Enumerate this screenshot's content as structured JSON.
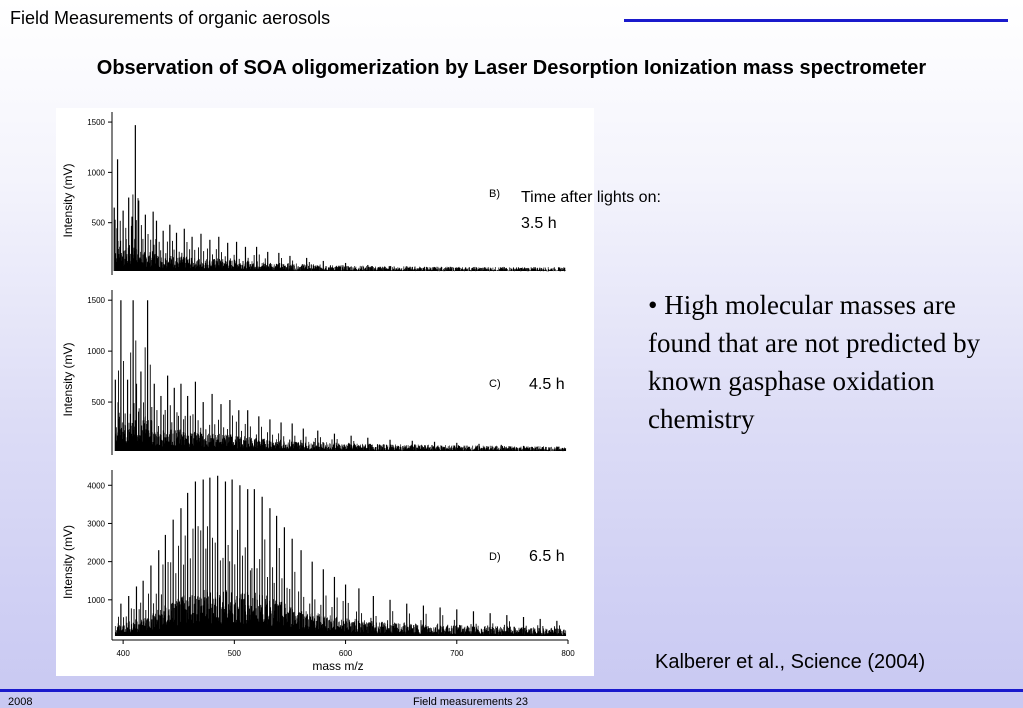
{
  "header": {
    "title": "Field Measurements of organic aerosols",
    "rule_color": "#1a1acc"
  },
  "slide_title": "Observation of SOA oligomerization by Laser Desorption Ionization mass spectrometer",
  "annotations": {
    "time_label": "Time  after lights on:",
    "panel_b_label": "B)",
    "panel_b_time": "3.5 h",
    "panel_c_label": "C)",
    "panel_c_time": "4.5 h",
    "panel_d_label": "D)",
    "panel_d_time": "6.5 h"
  },
  "bullet": "• High molecular masses are found that are not predicted by known gasphase oxidation chemistry",
  "citation": "Kalberer et al., Science (2004)",
  "footer": {
    "left": "2008",
    "center": "Field measurements 23",
    "rule_color": "#1a1acc"
  },
  "chart_data": [
    {
      "type": "line",
      "panel": "B)",
      "xlabel": "",
      "ylabel": "Intensity (mV)",
      "xlim": [
        390,
        800
      ],
      "ylim": [
        0,
        1600
      ],
      "yticks": [
        500,
        1000,
        1500
      ],
      "peaks": {
        "x": [
          392,
          395,
          400,
          405,
          408,
          411,
          414,
          420,
          427,
          430,
          436,
          442,
          448,
          455,
          462,
          470,
          478,
          486,
          494,
          502,
          510,
          520,
          530,
          540,
          550,
          565,
          580,
          600,
          620,
          640,
          660,
          680,
          700,
          720,
          740,
          760,
          780,
          795
        ],
        "y": [
          650,
          1130,
          620,
          750,
          560,
          1470,
          720,
          580,
          610,
          520,
          420,
          480,
          400,
          440,
          360,
          390,
          330,
          360,
          300,
          310,
          260,
          260,
          210,
          200,
          170,
          150,
          120,
          100,
          80,
          70,
          60,
          50,
          45,
          40,
          40,
          35,
          35,
          30
        ]
      }
    },
    {
      "type": "line",
      "panel": "C)",
      "xlabel": "",
      "ylabel": "Intensity (mV)",
      "xlim": [
        390,
        800
      ],
      "ylim": [
        0,
        1600
      ],
      "yticks": [
        500,
        1000,
        1500
      ],
      "peaks": {
        "x": [
          393,
          398,
          404,
          409,
          412,
          416,
          422,
          428,
          434,
          440,
          446,
          452,
          458,
          465,
          472,
          480,
          488,
          496,
          504,
          512,
          522,
          532,
          542,
          552,
          562,
          575,
          590,
          605,
          620,
          640,
          660,
          680,
          700,
          720,
          740,
          760,
          780,
          795
        ],
        "y": [
          720,
          1500,
          720,
          1500,
          680,
          800,
          1500,
          680,
          560,
          760,
          640,
          680,
          560,
          700,
          500,
          580,
          480,
          520,
          420,
          420,
          360,
          330,
          300,
          290,
          240,
          220,
          190,
          170,
          150,
          130,
          120,
          110,
          100,
          90,
          80,
          70,
          60,
          50
        ]
      }
    },
    {
      "type": "line",
      "panel": "D)",
      "xlabel": "mass m/z",
      "ylabel": "Intensity (mV)",
      "xlim": [
        390,
        800
      ],
      "ylim": [
        0,
        4400
      ],
      "xticks": [
        400,
        500,
        600,
        700,
        800
      ],
      "yticks": [
        1000,
        2000,
        3000,
        4000
      ],
      "peaks": {
        "x": [
          398,
          405,
          412,
          418,
          425,
          432,
          438,
          445,
          452,
          458,
          465,
          472,
          478,
          485,
          492,
          498,
          505,
          512,
          518,
          525,
          532,
          538,
          545,
          552,
          560,
          570,
          580,
          590,
          600,
          612,
          625,
          640,
          655,
          670,
          685,
          700,
          715,
          730,
          745,
          760,
          775,
          790
        ],
        "y": [
          900,
          1100,
          1350,
          1500,
          1900,
          2300,
          2700,
          3100,
          3400,
          3800,
          4100,
          4150,
          4200,
          4250,
          4100,
          4150,
          4000,
          3900,
          3900,
          3700,
          3400,
          3200,
          2900,
          2600,
          2300,
          2000,
          1800,
          1600,
          1400,
          1300,
          1100,
          1000,
          900,
          850,
          800,
          750,
          700,
          650,
          600,
          550,
          500,
          450
        ]
      }
    }
  ]
}
